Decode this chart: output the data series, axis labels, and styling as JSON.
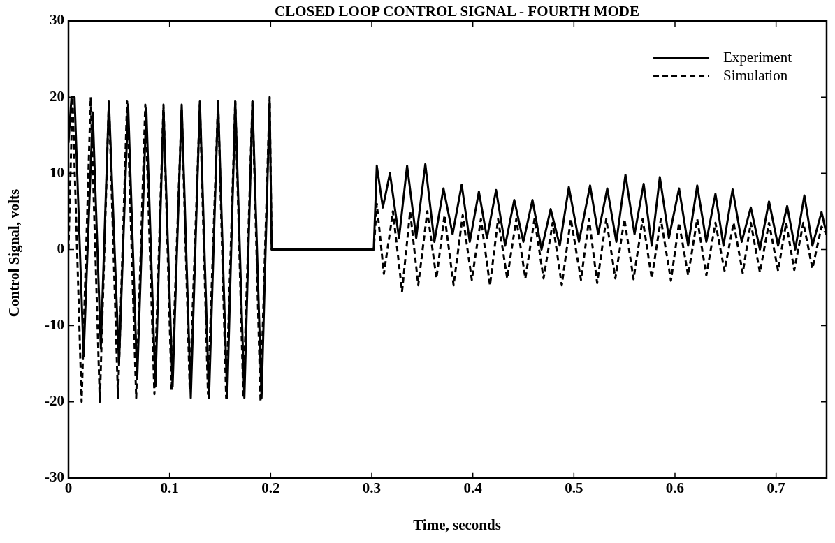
{
  "chart_data": {
    "type": "line",
    "title": "CLOSED LOOP CONTROL SIGNAL - FOURTH MODE",
    "xlabel": "Time, seconds",
    "ylabel": "Control Signal, volts",
    "xlim": [
      0,
      0.75
    ],
    "xticks": [
      0,
      0.1,
      0.2,
      0.3,
      0.4,
      0.5,
      0.6,
      0.7
    ],
    "ylim": [
      -30,
      30
    ],
    "yticks": [
      -30,
      -20,
      -10,
      0,
      10,
      20,
      30
    ],
    "grid": false,
    "legend": "top right",
    "marker": "none",
    "series": [
      {
        "name": "Experiment",
        "color": "#000000",
        "line_style": "solid",
        "x": [
          0,
          0.003,
          0.006,
          0.015,
          0.024,
          0.032,
          0.04,
          0.05,
          0.059,
          0.068,
          0.077,
          0.086,
          0.094,
          0.103,
          0.112,
          0.121,
          0.13,
          0.139,
          0.148,
          0.157,
          0.165,
          0.174,
          0.182,
          0.191,
          0.199,
          0.201,
          0.3,
          0.302,
          0.305,
          0.311,
          0.318,
          0.327,
          0.335,
          0.344,
          0.353,
          0.362,
          0.371,
          0.38,
          0.389,
          0.397,
          0.406,
          0.414,
          0.423,
          0.432,
          0.441,
          0.45,
          0.459,
          0.468,
          0.477,
          0.486,
          0.495,
          0.505,
          0.516,
          0.524,
          0.533,
          0.542,
          0.551,
          0.56,
          0.569,
          0.577,
          0.585,
          0.594,
          0.604,
          0.613,
          0.622,
          0.631,
          0.64,
          0.648,
          0.657,
          0.666,
          0.675,
          0.684,
          0.693,
          0.702,
          0.711,
          0.719,
          0.728,
          0.736,
          0.745,
          0.75
        ],
        "values": [
          14,
          20,
          20,
          -14,
          18,
          -13,
          19.5,
          -15,
          19,
          -17,
          18.5,
          -18,
          18.5,
          -18,
          19,
          -19.5,
          19.5,
          -19.5,
          19.5,
          -19.5,
          19.5,
          -19.5,
          19.5,
          -19.5,
          19.5,
          0,
          0,
          0,
          11,
          5.5,
          10,
          1.5,
          11,
          1.5,
          11.2,
          1,
          8,
          2,
          8.5,
          1,
          7.6,
          1.5,
          7.8,
          0.5,
          6.5,
          1,
          6.5,
          0,
          5.3,
          0.5,
          8.2,
          1,
          8.4,
          2,
          8,
          1,
          9.8,
          2,
          8.6,
          0.5,
          9.5,
          1.5,
          8,
          0.5,
          8.4,
          1,
          7.3,
          0.5,
          7.9,
          1,
          5.5,
          0,
          6.3,
          0.5,
          5.7,
          0,
          7.1,
          0.5,
          4.9,
          2
        ]
      },
      {
        "name": "Simulation",
        "color": "#000000",
        "line_style": "dashed",
        "x": [
          0,
          0.004,
          0.013,
          0.022,
          0.031,
          0.04,
          0.049,
          0.058,
          0.067,
          0.076,
          0.085,
          0.094,
          0.102,
          0.112,
          0.12,
          0.13,
          0.138,
          0.148,
          0.156,
          0.165,
          0.173,
          0.182,
          0.19,
          0.199,
          0.201,
          0.3,
          0.302,
          0.305,
          0.312,
          0.321,
          0.33,
          0.338,
          0.346,
          0.355,
          0.364,
          0.372,
          0.381,
          0.39,
          0.399,
          0.408,
          0.417,
          0.425,
          0.434,
          0.443,
          0.452,
          0.461,
          0.47,
          0.479,
          0.488,
          0.497,
          0.507,
          0.515,
          0.523,
          0.532,
          0.541,
          0.55,
          0.559,
          0.568,
          0.577,
          0.586,
          0.596,
          0.604,
          0.613,
          0.622,
          0.631,
          0.64,
          0.649,
          0.658,
          0.667,
          0.675,
          0.684,
          0.693,
          0.702,
          0.71,
          0.718,
          0.727,
          0.736,
          0.745,
          0.75
        ],
        "values": [
          0,
          20,
          -20,
          20,
          -20,
          19.5,
          -19.5,
          19.5,
          -19.5,
          19,
          -19,
          19,
          -18.5,
          18.5,
          -18.5,
          19,
          -19,
          19.5,
          -19.5,
          19.5,
          -19.5,
          19.5,
          -20,
          20,
          0,
          0,
          0,
          6,
          -3.2,
          5,
          -5.5,
          5,
          -4.7,
          5,
          -3.8,
          4.5,
          -4.7,
          4.5,
          -4,
          4,
          -4.7,
          4,
          -3.8,
          4,
          -3.8,
          4,
          -3.8,
          3.5,
          -4.7,
          4,
          -4,
          4,
          -4.4,
          4,
          -3.8,
          4,
          -3.9,
          4,
          -3.8,
          4,
          -4.1,
          3.5,
          -3.4,
          4,
          -3.4,
          3.5,
          -2.8,
          3.5,
          -3.1,
          3.5,
          -3,
          3.5,
          -2.8,
          3.5,
          -2.7,
          3.5,
          -2.5,
          3,
          2
        ]
      }
    ]
  }
}
